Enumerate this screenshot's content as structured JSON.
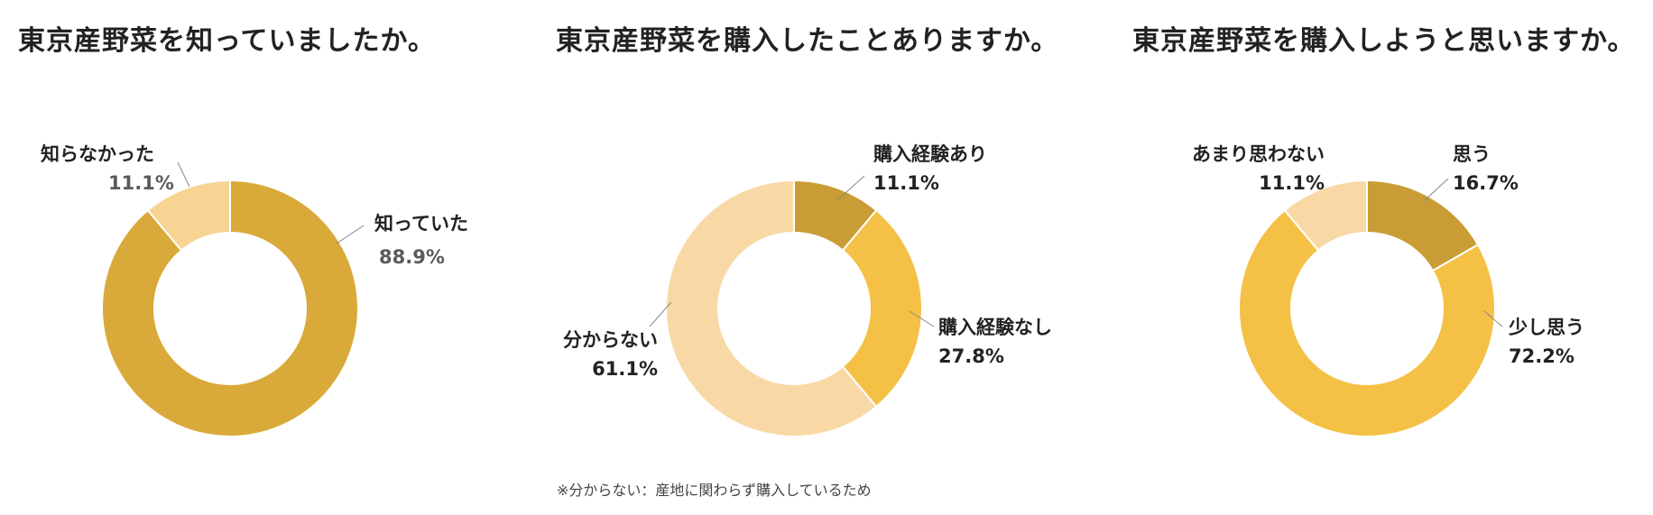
{
  "chart_data": [
    {
      "type": "pie",
      "title": "東京産野菜を知っていましたか。",
      "slices": [
        {
          "label": "知っていた",
          "value": 88.9,
          "display": "88.9%",
          "color": "#D9AA3A"
        },
        {
          "label": "知らなかった",
          "value": 11.1,
          "display": "11.1%",
          "color": "#F7D394"
        }
      ]
    },
    {
      "type": "pie",
      "title": "東京産野菜を購入したことありますか。",
      "slices": [
        {
          "label": "購入経験あり",
          "value": 11.1,
          "display": "11.1%",
          "color": "#C99C35"
        },
        {
          "label": "購入経験なし",
          "value": 27.8,
          "display": "27.8%",
          "color": "#F4C146"
        },
        {
          "label": "分からない",
          "value": 61.1,
          "display": "61.1%",
          "color": "#F8D9A6"
        }
      ],
      "footnote": "※分からない：産地に関わらず購入しているため"
    },
    {
      "type": "pie",
      "title": "東京産野菜を購入しようと思いますか。",
      "slices": [
        {
          "label": "思う",
          "value": 16.7,
          "display": "16.7%",
          "color": "#C99C35"
        },
        {
          "label": "少し思う",
          "value": 72.2,
          "display": "72.2%",
          "color": "#F4C146"
        },
        {
          "label": "あまり思わない",
          "value": 11.1,
          "display": "11.1%",
          "color": "#F8D9A6"
        }
      ]
    }
  ]
}
